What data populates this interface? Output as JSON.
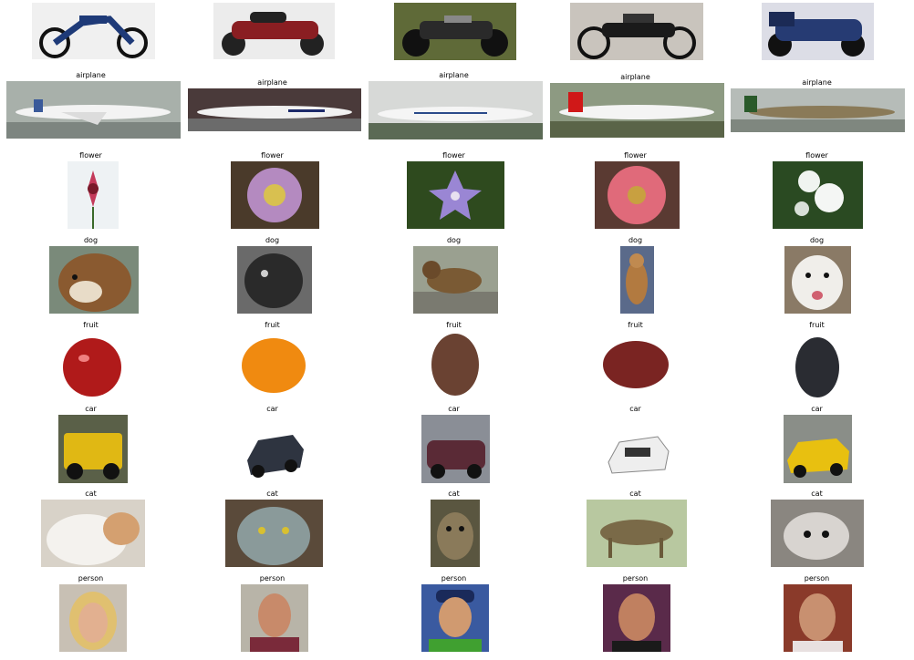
{
  "rows": [
    {
      "label": "",
      "subjects": [
        "motorbike",
        "motorbike",
        "motorbike",
        "motorbike",
        "motorbike"
      ]
    },
    {
      "label": "airplane",
      "subjects": [
        "airplane",
        "airplane",
        "airplane",
        "airplane",
        "airplane"
      ]
    },
    {
      "label": "flower",
      "subjects": [
        "flower",
        "flower",
        "flower",
        "flower",
        "flower"
      ]
    },
    {
      "label": "dog",
      "subjects": [
        "dog",
        "dog",
        "dog",
        "dog",
        "dog"
      ]
    },
    {
      "label": "fruit",
      "subjects": [
        "fruit",
        "fruit",
        "fruit",
        "fruit",
        "fruit"
      ]
    },
    {
      "label": "car",
      "subjects": [
        "car",
        "car",
        "car",
        "car",
        "car"
      ]
    },
    {
      "label": "cat",
      "subjects": [
        "cat",
        "cat",
        "cat",
        "cat",
        "cat"
      ]
    },
    {
      "label": "person",
      "subjects": [
        "person",
        "person",
        "person",
        "person",
        "person"
      ]
    }
  ],
  "colors": {
    "motorbike": [
      "#e9e9e9",
      "#2b3f73"
    ],
    "airplane": [
      "#9aa39a",
      "#f2f2f2"
    ],
    "flower": [
      "#3a5a2a",
      "#c44a7a"
    ],
    "dog": [
      "#b7b2a8",
      "#6b4a2a"
    ],
    "fruit": [
      "#ffffff",
      "#b22020"
    ],
    "car": [
      "#e6e2da",
      "#e0b81a"
    ],
    "cat": [
      "#c9c0b0",
      "#8a7a66"
    ],
    "person": [
      "#d9d4cc",
      "#c08c6a"
    ]
  }
}
